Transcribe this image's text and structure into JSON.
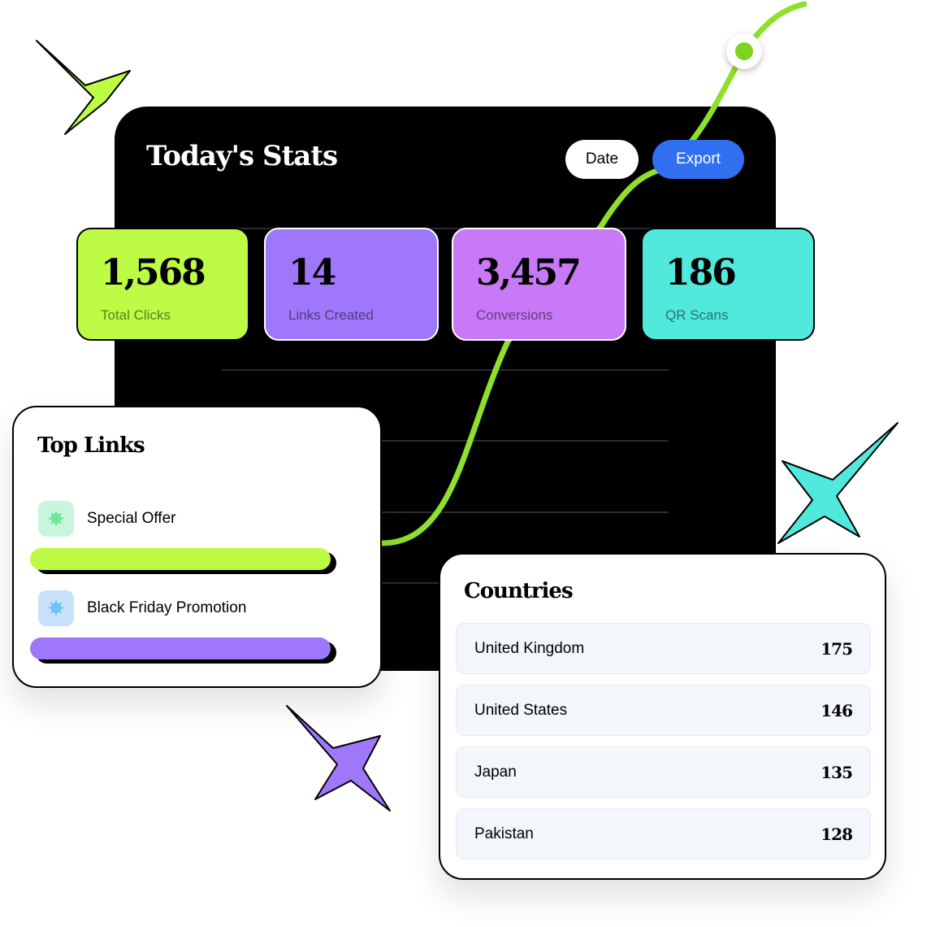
{
  "dashboard": {
    "title": "Today's Stats",
    "date_label": "Date",
    "export_label": "Export"
  },
  "stats": [
    {
      "value": "1,568",
      "label": "Total Clicks",
      "color": "#bdfb44"
    },
    {
      "value": "14",
      "label": "Links Created",
      "color": "#9e77fb"
    },
    {
      "value": "3,457",
      "label": "Conversions",
      "color": "#c979f8"
    },
    {
      "value": "186",
      "label": "QR Scans",
      "color": "#50e9dc"
    }
  ],
  "top_links": {
    "title": "Top Links",
    "items": [
      {
        "label": "Special Offer",
        "icon": "sparkle-icon",
        "bar_color": "#bdfb44"
      },
      {
        "label": "Black Friday Promotion",
        "icon": "sparkle-icon",
        "bar_color": "#9e77fb"
      }
    ]
  },
  "countries": {
    "title": "Countries",
    "rows": [
      {
        "name": "United Kingdom",
        "count": "175"
      },
      {
        "name": "United States",
        "count": "146"
      },
      {
        "name": "Japan",
        "count": "135"
      },
      {
        "name": "Pakistan",
        "count": "128"
      }
    ]
  }
}
